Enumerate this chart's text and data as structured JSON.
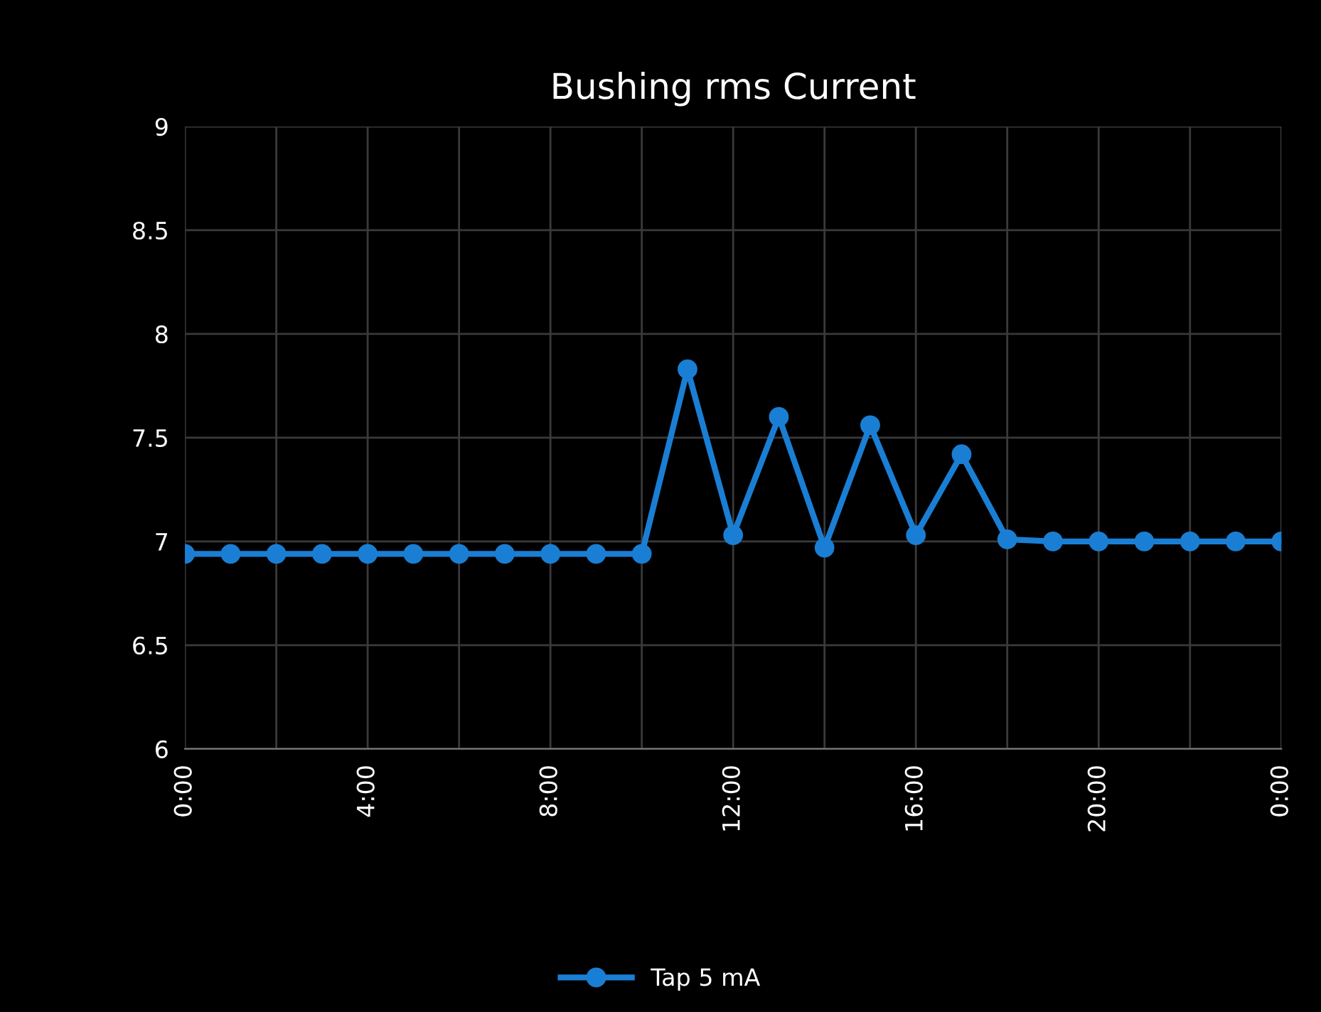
{
  "chart_data": {
    "type": "line",
    "title": "Bushing rms Current",
    "x": [
      0,
      1,
      2,
      3,
      4,
      5,
      6,
      7,
      8,
      9,
      10,
      11,
      12,
      13,
      14,
      15,
      16,
      17,
      18,
      19,
      20,
      21,
      22,
      23,
      24
    ],
    "series": [
      {
        "name": "Tap 5 mA",
        "color": "#1a7fd4",
        "values": [
          6.94,
          6.94,
          6.94,
          6.94,
          6.94,
          6.94,
          6.94,
          6.94,
          6.94,
          6.94,
          6.94,
          7.83,
          7.03,
          7.6,
          6.97,
          7.56,
          7.03,
          7.42,
          7.01,
          7.0,
          7.0,
          7.0,
          7.0,
          7.0,
          7.0
        ]
      }
    ],
    "xlim": [
      0,
      24
    ],
    "xticks": [
      {
        "value": 0,
        "label": "0:00"
      },
      {
        "value": 2,
        "label": null
      },
      {
        "value": 4,
        "label": "4:00"
      },
      {
        "value": 6,
        "label": null
      },
      {
        "value": 8,
        "label": "8:00"
      },
      {
        "value": 10,
        "label": null
      },
      {
        "value": 12,
        "label": "12:00"
      },
      {
        "value": 14,
        "label": null
      },
      {
        "value": 16,
        "label": "16:00"
      },
      {
        "value": 18,
        "label": null
      },
      {
        "value": 20,
        "label": "20:00"
      },
      {
        "value": 22,
        "label": null
      },
      {
        "value": 24,
        "label": "0:00"
      }
    ],
    "ylim": [
      6,
      9
    ],
    "yticks": [
      6,
      6.5,
      7,
      7.5,
      8,
      8.5,
      9
    ],
    "grid": true,
    "legend": "bottom",
    "marker": "circle",
    "line_style": "solid"
  }
}
